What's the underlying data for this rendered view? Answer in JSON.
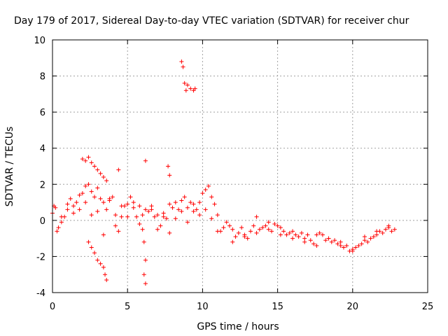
{
  "chart_data": {
    "type": "scatter",
    "title": "Day 179 of 2017, Sidereal Day-to-day VTEC variation (SDTVAR) for receiver chur",
    "xlabel": "GPS time / hours",
    "ylabel": "SDTVAR / TECUs",
    "xlim": [
      0,
      25
    ],
    "ylim": [
      -4,
      10
    ],
    "xticks": [
      0,
      5,
      10,
      15,
      20,
      25
    ],
    "yticks": [
      -4,
      -2,
      0,
      2,
      4,
      6,
      8,
      10
    ],
    "xtick_labels": [
      "0",
      "5",
      "10",
      "15",
      "20",
      "25"
    ],
    "ytick_labels": [
      "-4",
      "-2",
      "0",
      "2",
      "4",
      "6",
      "8",
      "10"
    ],
    "grid": true,
    "marker": "+",
    "series": [
      {
        "name": "SDTVAR",
        "color": "#ff0000",
        "x": [
          0.0,
          0.2,
          0.4,
          0.6,
          0.8,
          1.0,
          1.2,
          1.4,
          1.6,
          1.8,
          2.0,
          2.2,
          2.4,
          2.6,
          2.8,
          3.0,
          3.2,
          3.4,
          3.6,
          3.8,
          4.0,
          4.2,
          4.4,
          4.6,
          4.8,
          5.0,
          5.2,
          5.4,
          5.6,
          5.8,
          6.0,
          6.2,
          6.4,
          6.6,
          6.8,
          7.0,
          7.2,
          7.4,
          7.6,
          7.8,
          8.0,
          8.2,
          8.4,
          8.6,
          8.8,
          9.0,
          9.2,
          9.4,
          9.6,
          9.8,
          10.0,
          10.2,
          10.4,
          10.6,
          10.8,
          11.0,
          11.2,
          11.4,
          11.6,
          11.8,
          12.0,
          12.2,
          12.4,
          12.6,
          12.8,
          13.0,
          13.2,
          13.4,
          13.6,
          13.8,
          14.0,
          14.2,
          14.4,
          14.6,
          14.8,
          15.0,
          15.2,
          15.4,
          15.6,
          15.8,
          16.0,
          16.2,
          16.4,
          16.6,
          16.8,
          17.0,
          17.2,
          17.4,
          17.6,
          17.8,
          18.0,
          18.2,
          18.4,
          18.6,
          18.8,
          19.0,
          19.2,
          19.4,
          19.6,
          19.8,
          20.0,
          20.2,
          20.4,
          20.6,
          20.8,
          21.0,
          21.2,
          21.4,
          21.6,
          21.8,
          22.0,
          22.2,
          22.4,
          22.6,
          22.8,
          2.0,
          2.2,
          2.4,
          2.6,
          2.8,
          3.0,
          3.2,
          3.4,
          3.6,
          2.4,
          2.6,
          2.8,
          3.0,
          3.2,
          3.4,
          3.5,
          3.6,
          6.0,
          6.1,
          6.2,
          6.1,
          6.2,
          8.6,
          8.7,
          8.8,
          8.9,
          9.0,
          9.2,
          9.4,
          9.5,
          4.4,
          6.2,
          7.7,
          7.8,
          0.1,
          0.3,
          0.6,
          1.0,
          1.4,
          1.8,
          2.2,
          2.6,
          3.0,
          3.4,
          3.8,
          4.2,
          4.6,
          5.0,
          5.4,
          5.8,
          6.6,
          7.0,
          7.4,
          7.8,
          8.2,
          8.6,
          9.0,
          9.4,
          9.8,
          10.2,
          10.6,
          11.0,
          12.0,
          12.8,
          13.6,
          14.4,
          15.2,
          16.0,
          16.8,
          17.6,
          18.4,
          19.2,
          20.0,
          20.8,
          21.6,
          22.4
        ],
        "y": [
          0.4,
          0.7,
          -0.4,
          -0.1,
          0.2,
          0.6,
          1.2,
          0.8,
          1.0,
          1.4,
          1.5,
          1.9,
          2.0,
          1.6,
          1.3,
          1.8,
          1.2,
          1.0,
          0.6,
          1.2,
          1.3,
          0.3,
          -0.6,
          0.2,
          0.8,
          0.9,
          1.3,
          0.7,
          0.2,
          0.8,
          0.3,
          0.6,
          0.5,
          0.8,
          0.2,
          0.3,
          -0.3,
          0.4,
          0.1,
          0.9,
          0.7,
          1.0,
          0.6,
          1.1,
          1.3,
          0.7,
          1.0,
          0.5,
          0.6,
          1.0,
          1.5,
          1.7,
          1.9,
          1.3,
          0.9,
          0.3,
          -0.6,
          -0.4,
          -0.1,
          -0.3,
          -0.5,
          -0.9,
          -0.7,
          -0.4,
          -0.8,
          -1.0,
          -0.6,
          -0.3,
          -0.7,
          -0.5,
          -0.4,
          -0.3,
          -0.5,
          -0.6,
          -0.2,
          -0.3,
          -0.4,
          -0.6,
          -0.8,
          -0.7,
          -1.0,
          -0.8,
          -0.9,
          -0.7,
          -1.0,
          -0.8,
          -1.1,
          -1.3,
          -0.8,
          -0.7,
          -0.8,
          -1.1,
          -1.0,
          -1.2,
          -1.1,
          -1.3,
          -1.4,
          -1.5,
          -1.4,
          -1.7,
          -1.6,
          -1.5,
          -1.4,
          -1.3,
          -1.1,
          -1.2,
          -1.0,
          -0.9,
          -0.8,
          -0.6,
          -0.7,
          -0.5,
          -0.4,
          -0.6,
          -0.5,
          3.4,
          3.3,
          3.5,
          3.2,
          3.0,
          2.8,
          2.6,
          2.4,
          2.2,
          -1.2,
          -1.5,
          -1.8,
          -2.2,
          -2.4,
          -2.6,
          -3.0,
          -3.3,
          -0.5,
          -1.2,
          -2.2,
          -3.0,
          -3.5,
          8.8,
          8.5,
          7.6,
          7.2,
          7.5,
          7.3,
          7.2,
          7.3,
          2.8,
          3.3,
          3.0,
          2.5,
          0.8,
          -0.6,
          0.2,
          0.9,
          0.4,
          0.6,
          1.0,
          0.3,
          0.5,
          -0.8,
          1.1,
          -0.3,
          0.8,
          0.2,
          1.0,
          -0.2,
          0.6,
          -0.5,
          0.2,
          -0.7,
          0.1,
          0.5,
          -0.1,
          0.9,
          0.3,
          0.6,
          0.1,
          -0.6,
          -1.2,
          -0.9,
          0.2,
          -0.1,
          -0.8,
          -0.6,
          -1.2,
          -1.4,
          -1.0,
          -1.2,
          -1.7,
          -0.9,
          -0.6,
          -0.3
        ]
      }
    ]
  }
}
